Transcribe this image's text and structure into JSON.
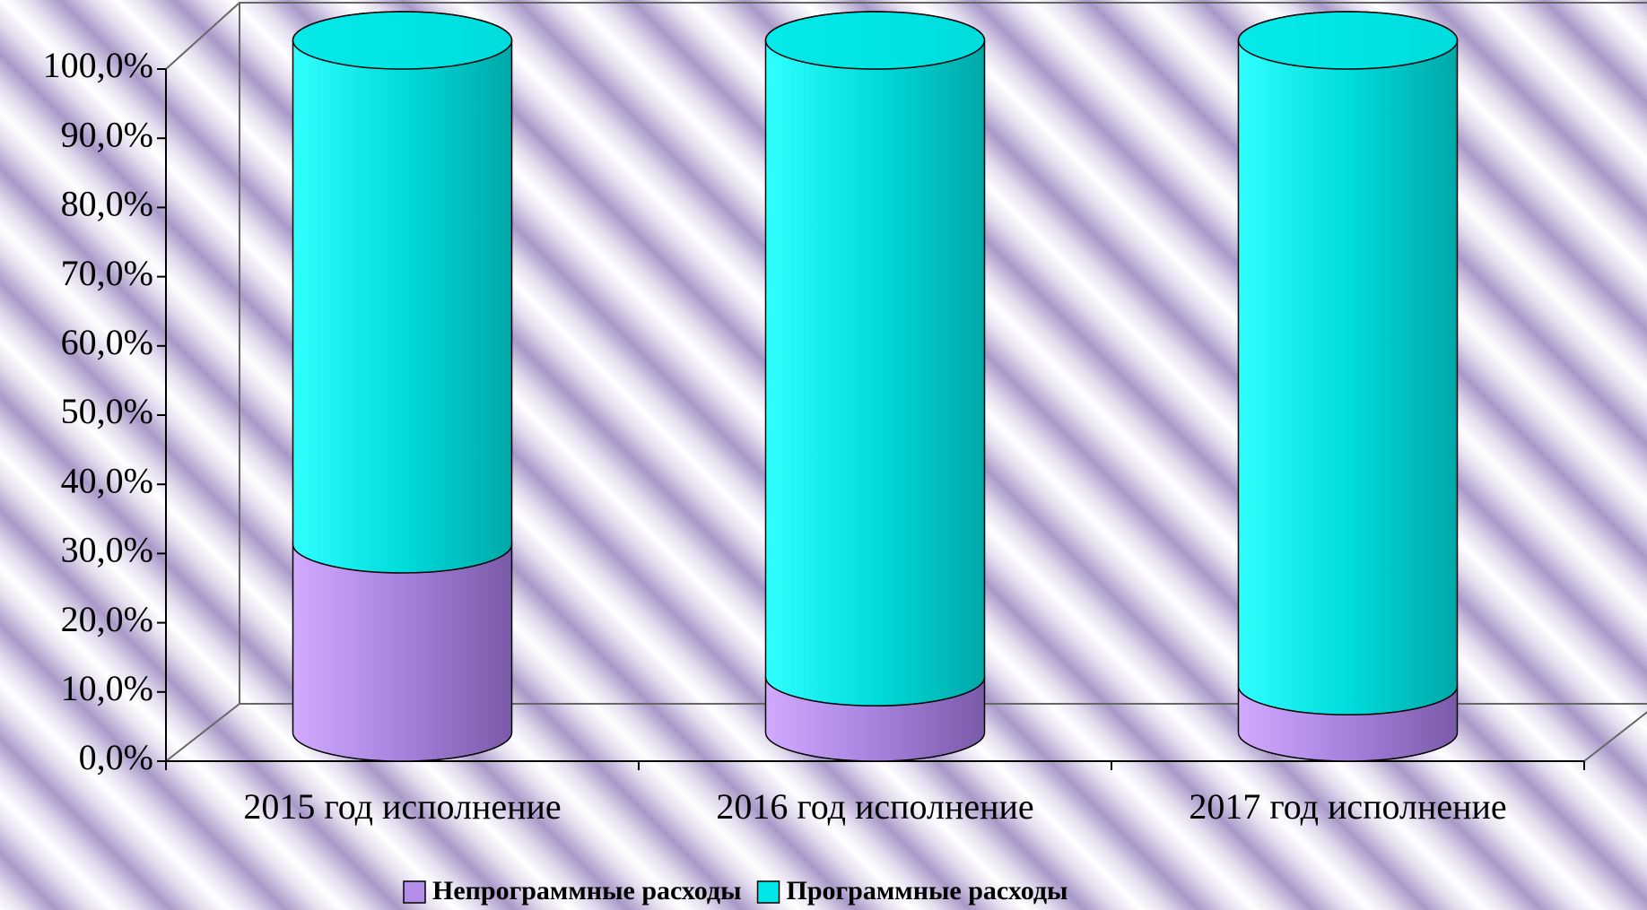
{
  "chart_data": {
    "type": "bar",
    "stacked": true,
    "categories": [
      "2015 год исполнение",
      "2016 год исполнение",
      "2017 год исполнение"
    ],
    "series": [
      {
        "name": "Непрограммные расходы",
        "color": "#b38ee8",
        "values": [
          27.2,
          8.0,
          6.7
        ]
      },
      {
        "name": "Программные расходы",
        "color": "#00e5e5",
        "values": [
          72.8,
          92.0,
          93.3
        ]
      }
    ],
    "ylim": [
      0,
      100
    ],
    "yticks": [
      {
        "value": 0,
        "label": "0,0%"
      },
      {
        "value": 10,
        "label": "10,0%"
      },
      {
        "value": 20,
        "label": "20,0%"
      },
      {
        "value": 30,
        "label": "30,0%"
      },
      {
        "value": 40,
        "label": "40,0%"
      },
      {
        "value": 50,
        "label": "50,0%"
      },
      {
        "value": 60,
        "label": "60,0%"
      },
      {
        "value": 70,
        "label": "70,0%"
      },
      {
        "value": 80,
        "label": "80,0%"
      },
      {
        "value": 90,
        "label": "90,0%"
      },
      {
        "value": 100,
        "label": "100,0%"
      }
    ],
    "legend": "bottom"
  }
}
